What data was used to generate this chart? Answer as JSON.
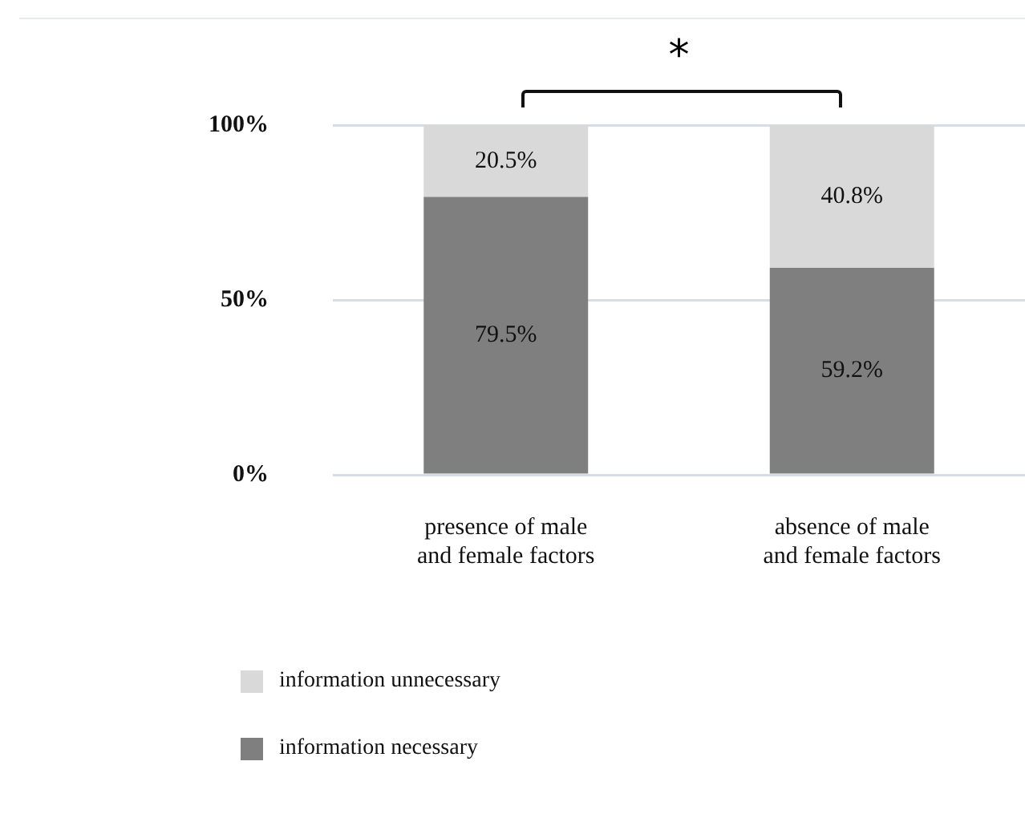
{
  "chart_data": {
    "type": "bar",
    "stacked": true,
    "categories": [
      "presence of male and female factors",
      "absence of male and female factors"
    ],
    "series": [
      {
        "name": "information necessary",
        "color": "#7f7f7f",
        "values": [
          79.5,
          59.2
        ],
        "value_labels": [
          "79.5%",
          "59.2%"
        ]
      },
      {
        "name": "information unnecessary",
        "color": "#d9d9d9",
        "values": [
          20.5,
          40.8
        ],
        "value_labels": [
          "20.5%",
          "40.8%"
        ]
      }
    ],
    "ylim": [
      0,
      100
    ],
    "yticks": [
      {
        "value": 0,
        "label": "0%"
      },
      {
        "value": 50,
        "label": "50%"
      },
      {
        "value": 100,
        "label": "100%"
      }
    ],
    "grid": "y",
    "legend": "bottom left",
    "annotations": [
      "*"
    ]
  }
}
